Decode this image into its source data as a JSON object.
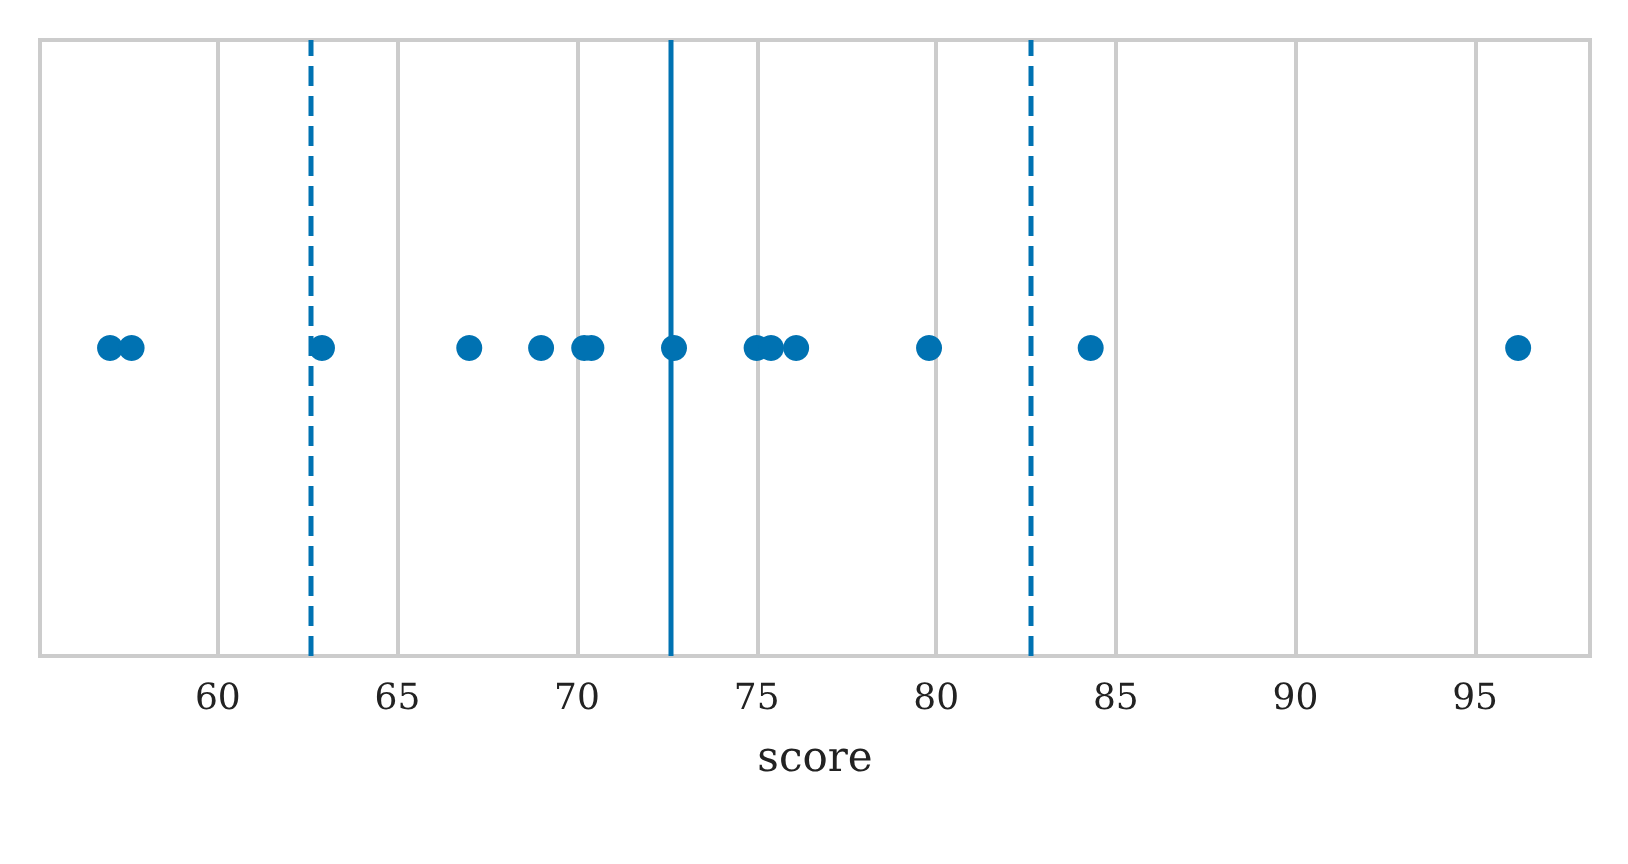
{
  "chart_data": {
    "type": "scatter",
    "xlabel": "score",
    "orientation": "horizontal",
    "categories": [
      null
    ],
    "series": [
      {
        "color": "#0072b2",
        "values": [
          57.0
        ]
      },
      {
        "color": "#0072b2",
        "values": [
          57.6
        ]
      },
      {
        "color": "#0072b2",
        "values": [
          62.9
        ]
      },
      {
        "color": "#0072b2",
        "values": [
          67.0
        ]
      },
      {
        "color": "#0072b2",
        "values": [
          69.0
        ]
      },
      {
        "color": "#0072b2",
        "values": [
          70.2
        ]
      },
      {
        "color": "#0072b2",
        "values": [
          70.4
        ]
      },
      {
        "color": "#0072b2",
        "values": [
          72.7
        ]
      },
      {
        "color": "#0072b2",
        "values": [
          75.0
        ]
      },
      {
        "color": "#0072b2",
        "values": [
          75.4
        ]
      },
      {
        "color": "#0072b2",
        "values": [
          76.1
        ]
      },
      {
        "color": "#0072b2",
        "values": [
          79.8
        ]
      },
      {
        "color": "#0072b2",
        "values": [
          84.3
        ]
      },
      {
        "color": "#0072b2",
        "values": [
          96.2
        ]
      }
    ],
    "marker": "circle",
    "xlim": [
      55.05,
      98.2
    ],
    "xticks": [
      60,
      65,
      70,
      75,
      80,
      85,
      90,
      95
    ],
    "grid": "x",
    "ref_lines": [
      {
        "axis": "x",
        "value": 72.6,
        "color": "#0072b2",
        "line_style": "solid"
      },
      {
        "axis": "x",
        "value": 62.6,
        "color": "#0072b2",
        "line_style": "dashed"
      },
      {
        "axis": "x",
        "value": 82.6,
        "color": "#0072b2",
        "line_style": "dashed"
      }
    ]
  }
}
